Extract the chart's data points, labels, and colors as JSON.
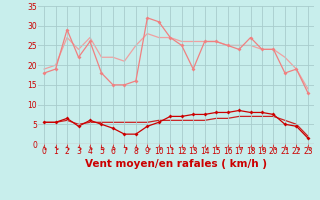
{
  "title": "",
  "xlabel": "Vent moyen/en rafales ( km/h )",
  "bg_color": "#c8eeec",
  "grid_color": "#a8cccc",
  "xlim": [
    -0.5,
    23.5
  ],
  "ylim": [
    0,
    35
  ],
  "yticks": [
    0,
    5,
    10,
    15,
    20,
    25,
    30,
    35
  ],
  "xticks": [
    0,
    1,
    2,
    3,
    4,
    5,
    6,
    7,
    8,
    9,
    10,
    11,
    12,
    13,
    14,
    15,
    16,
    17,
    18,
    19,
    20,
    21,
    22,
    23
  ],
  "x": [
    0,
    1,
    2,
    3,
    4,
    5,
    6,
    7,
    8,
    9,
    10,
    11,
    12,
    13,
    14,
    15,
    16,
    17,
    18,
    19,
    20,
    21,
    22,
    23
  ],
  "line1_y": [
    18,
    19,
    29,
    22,
    26,
    18,
    15,
    15,
    16,
    32,
    31,
    27,
    25,
    19,
    26,
    26,
    25,
    24,
    27,
    24,
    24,
    18,
    19,
    13
  ],
  "line1_color": "#f08080",
  "line2_y": [
    19,
    20,
    27,
    24,
    27,
    22,
    22,
    21,
    25,
    28,
    27,
    27,
    26,
    26,
    26,
    26,
    25,
    25,
    25,
    24,
    24,
    22,
    19,
    14
  ],
  "line2_color": "#f0a0a0",
  "line3_y": [
    5.5,
    5.5,
    6.5,
    4.5,
    6.0,
    5.0,
    4.0,
    2.5,
    2.5,
    4.5,
    5.5,
    7.0,
    7.0,
    7.5,
    7.5,
    8.0,
    8.0,
    8.5,
    8.0,
    8.0,
    7.5,
    5.0,
    4.5,
    1.5
  ],
  "line3_color": "#cc0000",
  "line4_y": [
    5.5,
    5.5,
    6.0,
    5.0,
    5.5,
    5.5,
    5.5,
    5.5,
    5.5,
    5.5,
    6.0,
    6.0,
    6.0,
    6.0,
    6.0,
    6.5,
    6.5,
    7.0,
    7.0,
    7.0,
    7.0,
    6.0,
    5.0,
    2.0
  ],
  "line4_color": "#cc2222",
  "tick_color": "#cc0000",
  "xlabel_color": "#cc0000",
  "arrow_color": "#cc0000",
  "tick_fontsize": 5.5,
  "xlabel_fontsize": 7.5
}
